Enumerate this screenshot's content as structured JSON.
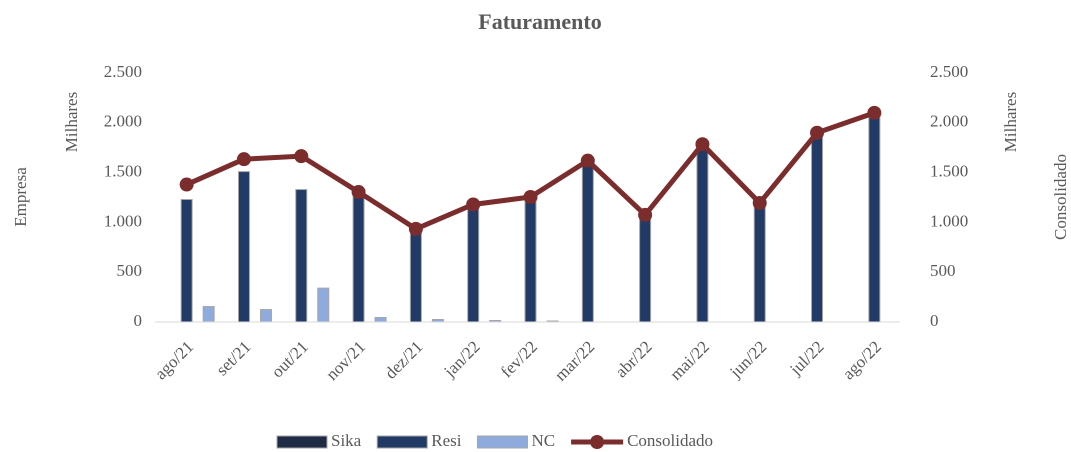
{
  "chart_data": {
    "type": "bar",
    "title": "Faturamento",
    "y_title": "Empresa",
    "y_unit": "Milhares",
    "y2_title": "Consolidado",
    "y2_unit": "Milhares",
    "categories": [
      "ago/21",
      "set/21",
      "out/21",
      "nov/21",
      "dez/21",
      "jan/22",
      "fev/22",
      "mar/22",
      "abr/22",
      "mai/22",
      "jun/22",
      "jul/22",
      "ago/22"
    ],
    "series": [
      {
        "name": "Sika",
        "color": "#1f2a44",
        "type": "bar",
        "values": [
          0,
          0,
          0,
          0,
          0,
          0,
          0,
          0,
          0,
          0,
          0,
          0,
          0
        ]
      },
      {
        "name": "Resi",
        "color": "#223a66",
        "type": "bar",
        "values": [
          1230,
          1510,
          1330,
          1260,
          910,
          1160,
          1240,
          1620,
          1070,
          1790,
          1190,
          1900,
          2100
        ]
      },
      {
        "name": "NC",
        "color": "#8faadc",
        "type": "bar",
        "values": [
          155,
          125,
          340,
          45,
          25,
          15,
          10,
          0,
          0,
          0,
          0,
          0,
          0
        ]
      },
      {
        "name": "Consolidado",
        "color": "#7b2c2c",
        "type": "line",
        "axis": "y2",
        "values": [
          1380,
          1635,
          1665,
          1305,
          935,
          1180,
          1255,
          1620,
          1075,
          1785,
          1195,
          1900,
          2100
        ]
      }
    ],
    "ylim": [
      0,
      2500
    ],
    "yticks": [
      0,
      500,
      {
        "value": 1000,
        "label": "1.000"
      },
      {
        "value": 1500,
        "label": "1.500"
      },
      {
        "value": 2000,
        "label": "2.000"
      },
      {
        "value": 2500,
        "label": "2.500"
      }
    ],
    "y2lim": [
      0,
      2500
    ],
    "y2ticks": [
      0,
      500,
      {
        "value": 1000,
        "label": "1.000"
      },
      {
        "value": 1500,
        "label": "1.500"
      },
      {
        "value": 2000,
        "label": "2.000"
      },
      {
        "value": 2500,
        "label": "2.500"
      }
    ],
    "legend": "bottom"
  }
}
